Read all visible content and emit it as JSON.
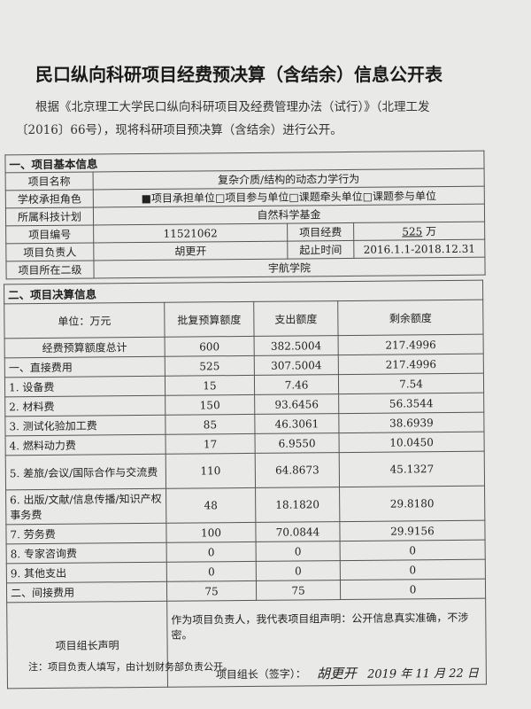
{
  "title": "民口纵向科研项目经费预决算（含结余）信息公开表",
  "intro": "根据《北京理工大学民口纵向科研项目及经费管理办法（试行）》（北理工发〔2016〕66号），现将科研项目预决算（含结余）进行公开。",
  "basic": {
    "section": "一、项目基本信息",
    "name_label": "项目名称",
    "name": "复杂介质/结构的动态力学行为",
    "role_label": "学校承担角色",
    "role": "■项目承担单位□项目参与单位□课题牵头单位□课题参与单位",
    "plan_label": "所属科技计划",
    "plan": "自然科学基金",
    "id_label": "项目编号",
    "id": "11521062",
    "fund_label": "项目经费",
    "fund": "525",
    "fund_unit": "万",
    "leader_label": "项目负责人",
    "leader": "胡更开",
    "period_label": "起止时间",
    "period": "2016.1.1-2018.12.31",
    "dept_label": "项目所在二级",
    "dept": "宇航学院"
  },
  "budget": {
    "section": "二、项目决算信息",
    "headers": [
      "单位：万元",
      "批复预算额度",
      "支出额度",
      "剩余额度"
    ],
    "rows": [
      [
        "经费预算额度总计",
        "600",
        "382.5004",
        "217.4996"
      ],
      [
        "一、直接费用",
        "525",
        "307.5004",
        "217.4996"
      ],
      [
        "1. 设备费",
        "15",
        "7.46",
        "7.54"
      ],
      [
        "2. 材料费",
        "150",
        "93.6456",
        "56.3544"
      ],
      [
        "3. 测试化验加工费",
        "85",
        "46.3061",
        "38.6939"
      ],
      [
        "4. 燃料动力费",
        "17",
        "6.9550",
        "10.0450"
      ],
      [
        "5. 差旅/会议/国际合作与交流费",
        "110",
        "64.8673",
        "45.1327"
      ],
      [
        "6. 出版/文献/信息传播/知识产权事务费",
        "48",
        "18.1820",
        "29.8180"
      ],
      [
        "7. 劳务费",
        "100",
        "70.0844",
        "29.9156"
      ],
      [
        "8. 专家咨询费",
        "0",
        "0",
        "0"
      ],
      [
        "9. 其他支出",
        "0",
        "0",
        "0"
      ],
      [
        "二、间接费用",
        "75",
        "75",
        "0"
      ]
    ]
  },
  "declaration": {
    "label": "项目组长声明",
    "text": "作为项目负责人，我代表项目组声明：公开信息真实准确，不涉密。",
    "sign_label": "项目组长（签字）：",
    "signature": "胡更开",
    "date": "2019 年 11 月 22 日"
  },
  "note": "注：项目负责人填写，由计划财务部负责公开。"
}
